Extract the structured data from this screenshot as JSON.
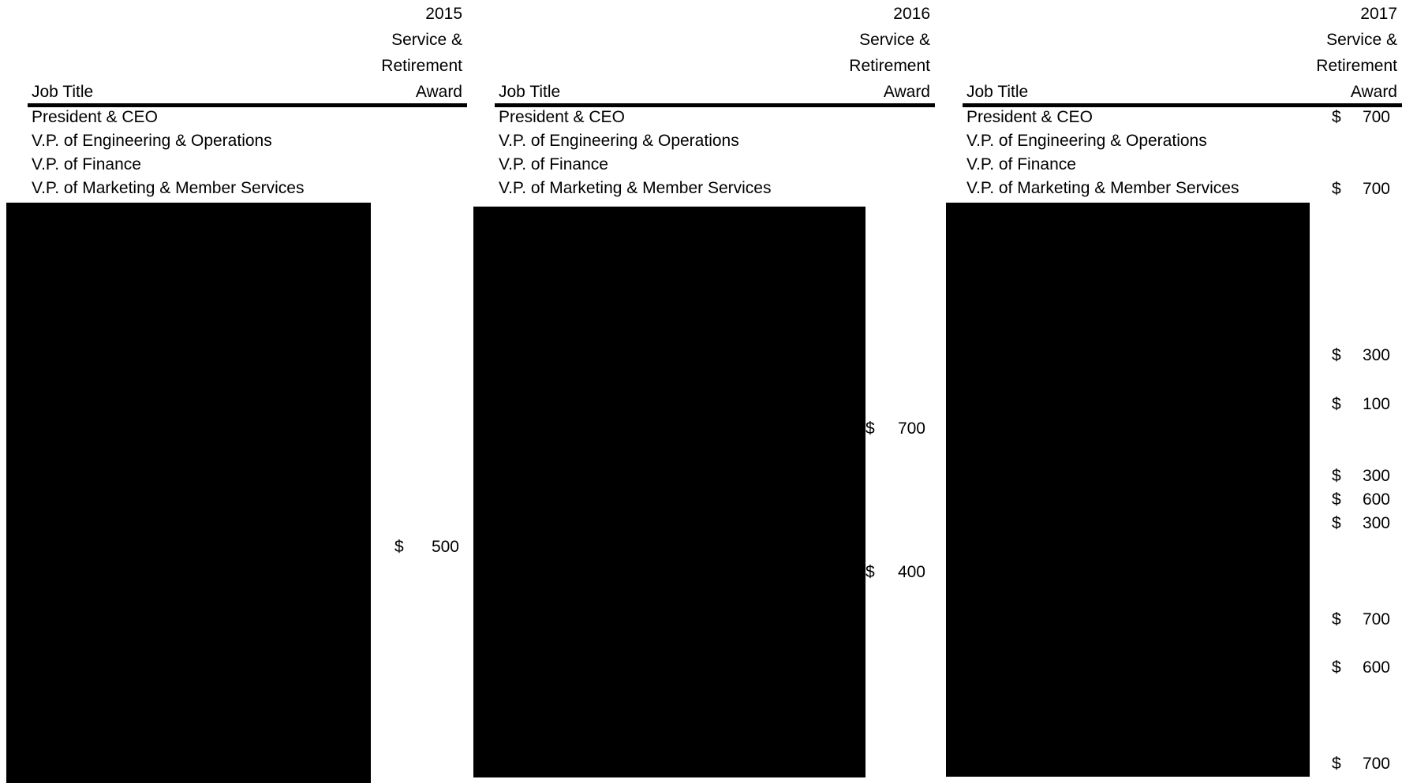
{
  "panels": [
    {
      "year": "2015",
      "header_lines": [
        "Service &",
        "Retirement",
        "Award"
      ],
      "job_title_header": "Job Title",
      "rows": [
        "President & CEO",
        "V.P. of Engineering & Operations",
        "V.P. of Finance",
        "V.P. of Marketing & Member Services"
      ],
      "awards": [
        {
          "currency": "$",
          "value": "500"
        }
      ]
    },
    {
      "year": "2016",
      "header_lines": [
        "Service &",
        "Retirement",
        "Award"
      ],
      "job_title_header": "Job Title",
      "rows": [
        "President & CEO",
        "V.P. of Engineering & Operations",
        "V.P. of Finance",
        "V.P. of Marketing & Member Services"
      ],
      "awards": [
        {
          "currency": "$",
          "value": "700"
        },
        {
          "currency": "$",
          "value": "400"
        }
      ]
    },
    {
      "year": "2017",
      "header_lines": [
        "Service &",
        "Retirement",
        "Award"
      ],
      "job_title_header": "Job Title",
      "rows": [
        "President & CEO",
        "V.P. of Engineering & Operations",
        "V.P. of Finance",
        "V.P. of Marketing & Member Services"
      ],
      "awards": [
        {
          "currency": "$",
          "value": "700"
        },
        {
          "currency": "$",
          "value": "700"
        },
        {
          "currency": "$",
          "value": "300"
        },
        {
          "currency": "$",
          "value": "100"
        },
        {
          "currency": "$",
          "value": "300"
        },
        {
          "currency": "$",
          "value": "600"
        },
        {
          "currency": "$",
          "value": "300"
        },
        {
          "currency": "$",
          "value": "700"
        },
        {
          "currency": "$",
          "value": "600"
        },
        {
          "currency": "$",
          "value": "700"
        }
      ]
    }
  ]
}
